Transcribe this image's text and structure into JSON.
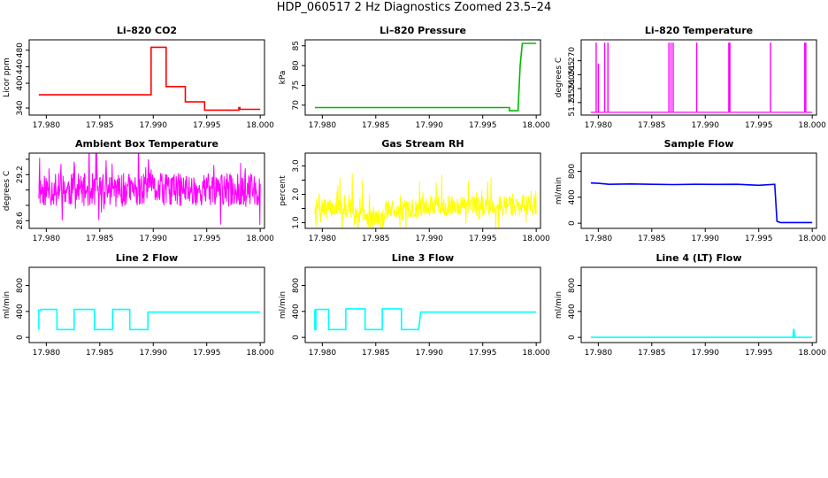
{
  "page": {
    "title": "HDP_060517  2 Hz Diagnostics Zoomed 23.5–24"
  },
  "chart_data": [
    {
      "type": "line",
      "title": "Li–820 CO2",
      "xlabel": "",
      "ylabel": "Licor ppm",
      "color": "#ff0000",
      "xlim": [
        17.9784,
        18.0004
      ],
      "ylim": [
        323,
        505
      ],
      "xticks": [
        17.98,
        17.985,
        17.99,
        17.995,
        18.0
      ],
      "xtick_labels": [
        "17.980",
        "17.985",
        "17.990",
        "17.995",
        "18.000"
      ],
      "yticks": [
        340,
        400,
        440,
        480
      ],
      "ytick_labels": [
        "340",
        "400",
        "440",
        "480"
      ],
      "series": [
        {
          "x": [
            17.9793,
            17.9898,
            17.9898,
            17.9912,
            17.9912,
            17.993,
            17.993,
            17.9948,
            17.9948,
            17.998,
            17.998,
            17.9981,
            17.9981,
            18.0
          ],
          "y": [
            372,
            372,
            487,
            487,
            392,
            392,
            355,
            355,
            335,
            335,
            341,
            341,
            337,
            337
          ]
        }
      ],
      "grid": false
    },
    {
      "type": "line",
      "title": "Li–820 Pressure",
      "xlabel": "",
      "ylabel": "kPa",
      "color": "#00bb00",
      "xlim": [
        17.9784,
        18.0004
      ],
      "ylim": [
        67.5,
        86.5
      ],
      "xticks": [
        17.98,
        17.985,
        17.99,
        17.995,
        18.0
      ],
      "xtick_labels": [
        "17.980",
        "17.985",
        "17.990",
        "17.995",
        "18.000"
      ],
      "yticks": [
        70,
        75,
        80,
        85
      ],
      "ytick_labels": [
        "70",
        "75",
        "80",
        "85"
      ],
      "series": [
        {
          "x": [
            17.9793,
            17.9975,
            17.9975,
            17.9983,
            17.9985,
            17.9987,
            18.0
          ],
          "y": [
            69.4,
            69.4,
            68.6,
            68.6,
            80.0,
            85.6,
            85.6
          ]
        }
      ],
      "grid": false
    },
    {
      "type": "line",
      "title": "Li–820 Temperature",
      "xlabel": "",
      "ylabel": "degrees C",
      "color": "#ff00ff",
      "xlim": [
        17.9784,
        18.0004
      ],
      "ylim": [
        51.2505,
        51.2775
      ],
      "xticks": [
        17.98,
        17.985,
        17.99,
        17.995,
        18.0
      ],
      "xtick_labels": [
        "17.980",
        "17.985",
        "17.990",
        "17.995",
        "18.000"
      ],
      "yticks": [
        51.255,
        51.26,
        51.265,
        51.27
      ],
      "ytick_labels": [
        "51.255",
        "51.260",
        "51.265",
        "51.270"
      ],
      "baseline": 51.2515,
      "spikes": [
        {
          "x": 17.9798,
          "y": 51.2765
        },
        {
          "x": 17.98,
          "y": 51.269
        },
        {
          "x": 17.9806,
          "y": 51.2765
        },
        {
          "x": 17.9809,
          "y": 51.2765
        },
        {
          "x": 17.9866,
          "y": 51.2765
        },
        {
          "x": 17.9868,
          "y": 51.2765
        },
        {
          "x": 17.987,
          "y": 51.2765
        },
        {
          "x": 17.9892,
          "y": 51.2765
        },
        {
          "x": 17.9922,
          "y": 51.2765
        },
        {
          "x": 17.9923,
          "y": 51.2765
        },
        {
          "x": 17.9961,
          "y": 51.2765
        },
        {
          "x": 17.9993,
          "y": 51.2765
        },
        {
          "x": 17.9994,
          "y": 51.2765
        }
      ],
      "grid": false
    },
    {
      "type": "line",
      "title": "Ambient Box Temperature",
      "xlabel": "",
      "ylabel": "degrees C",
      "color": "#ff00ff",
      "xlim": [
        17.9784,
        18.0004
      ],
      "ylim": [
        28.5,
        29.48
      ],
      "xticks": [
        17.98,
        17.985,
        17.99,
        17.995,
        18.0
      ],
      "xtick_labels": [
        "17.980",
        "17.985",
        "17.990",
        "17.995",
        "18.000"
      ],
      "yticks": [
        28.6,
        28.8,
        29.0,
        29.2,
        29.4
      ],
      "ytick_labels": [
        "28.6",
        "",
        "",
        "29.2",
        ""
      ],
      "noise": {
        "center": 29.0,
        "amplitude": 0.22,
        "spike": 0.42,
        "seed": 11
      },
      "grid": false
    },
    {
      "type": "line",
      "title": "Gas Stream RH",
      "xlabel": "",
      "ylabel": "percent",
      "color": "#ffff00",
      "xlim": [
        17.9784,
        18.0004
      ],
      "ylim": [
        0.8,
        3.45
      ],
      "xticks": [
        17.98,
        17.985,
        17.99,
        17.995,
        18.0
      ],
      "xtick_labels": [
        "17.980",
        "17.985",
        "17.990",
        "17.995",
        "18.000"
      ],
      "yticks": [
        1.0,
        1.5,
        2.0,
        2.5,
        3.0
      ],
      "ytick_labels": [
        "1.0",
        "",
        "2.0",
        "",
        "3.0"
      ],
      "noise": {
        "segments": [
          [
            17.9793,
            17.983,
            1.5
          ],
          [
            17.983,
            17.984,
            1.25
          ],
          [
            17.984,
            17.9858,
            1.15
          ],
          [
            17.9858,
            17.989,
            1.45
          ],
          [
            17.989,
            18.0,
            1.6
          ]
        ],
        "amplitude": 0.35,
        "spike": 0.8,
        "seed": 7,
        "max": 3.3
      },
      "grid": false
    },
    {
      "type": "line",
      "title": "Sample Flow",
      "xlabel": "",
      "ylabel": "ml/min",
      "color": "#0000ff",
      "xlim": [
        17.9784,
        18.0004
      ],
      "ylim": [
        -80,
        1080
      ],
      "xticks": [
        17.98,
        17.985,
        17.99,
        17.995,
        18.0
      ],
      "xtick_labels": [
        "17.980",
        "17.985",
        "17.990",
        "17.995",
        "18.000"
      ],
      "yticks": [
        0,
        400,
        800
      ],
      "ytick_labels": [
        "0",
        "400",
        "800"
      ],
      "series": [
        {
          "x": [
            17.9793,
            17.98,
            17.981,
            17.983,
            17.985,
            17.987,
            17.989,
            17.991,
            17.993,
            17.995,
            17.9965,
            17.9967,
            17.997,
            18.0
          ],
          "y": [
            620,
            615,
            600,
            605,
            600,
            595,
            600,
            598,
            600,
            585,
            600,
            30,
            10,
            10
          ]
        }
      ],
      "grid": false
    },
    {
      "type": "line",
      "title": "Line 2 Flow",
      "xlabel": "",
      "ylabel": "ml/min",
      "color": "#00ffff",
      "xlim": [
        17.9784,
        18.0004
      ],
      "ylim": [
        -80,
        1080
      ],
      "xticks": [
        17.98,
        17.985,
        17.99,
        17.995,
        18.0
      ],
      "xtick_labels": [
        "17.980",
        "17.985",
        "17.990",
        "17.995",
        "18.000"
      ],
      "yticks": [
        0,
        400,
        800
      ],
      "ytick_labels": [
        "0",
        "400",
        "800"
      ],
      "series": [
        {
          "x": [
            17.9793,
            17.9793,
            17.9795,
            17.9795,
            17.981,
            17.981,
            17.9826,
            17.9826,
            17.9845,
            17.9845,
            17.9862,
            17.9862,
            17.9878,
            17.9878,
            17.9895,
            17.9895,
            18.0
          ],
          "y": [
            120,
            420,
            420,
            430,
            430,
            120,
            120,
            430,
            430,
            120,
            120,
            430,
            430,
            120,
            120,
            390,
            390
          ]
        }
      ],
      "grid": false
    },
    {
      "type": "line",
      "title": "Line 3 Flow",
      "xlabel": "",
      "ylabel": "ml/min",
      "color": "#00ffff",
      "xlim": [
        17.9784,
        18.0004
      ],
      "ylim": [
        -80,
        1080
      ],
      "xticks": [
        17.98,
        17.985,
        17.99,
        17.995,
        18.0
      ],
      "xtick_labels": [
        "17.980",
        "17.985",
        "17.990",
        "17.995",
        "18.000"
      ],
      "yticks": [
        0,
        400,
        800
      ],
      "ytick_labels": [
        "0",
        "400",
        "800"
      ],
      "series": [
        {
          "x": [
            17.9793,
            17.9793,
            17.9794,
            17.9794,
            17.9806,
            17.9806,
            17.9822,
            17.9822,
            17.984,
            17.984,
            17.9856,
            17.9856,
            17.9874,
            17.9874,
            17.989,
            17.9892,
            18.0
          ],
          "y": [
            430,
            120,
            120,
            430,
            430,
            120,
            120,
            440,
            440,
            120,
            120,
            440,
            440,
            120,
            120,
            390,
            390
          ]
        }
      ],
      "grid": false
    },
    {
      "type": "line",
      "title": "Line 4 (LT) Flow",
      "xlabel": "",
      "ylabel": "ml/min",
      "color": "#00ffff",
      "xlim": [
        17.9784,
        18.0004
      ],
      "ylim": [
        -80,
        1080
      ],
      "xticks": [
        17.98,
        17.985,
        17.99,
        17.995,
        18.0
      ],
      "xtick_labels": [
        "17.980",
        "17.985",
        "17.990",
        "17.995",
        "18.000"
      ],
      "yticks": [
        0,
        400,
        800
      ],
      "ytick_labels": [
        "0",
        "400",
        "800"
      ],
      "series": [
        {
          "x": [
            17.9793,
            17.9982,
            17.99825,
            17.9983,
            17.99835,
            18.0
          ],
          "y": [
            0,
            0,
            120,
            120,
            0,
            0
          ]
        }
      ],
      "grid": false
    }
  ]
}
